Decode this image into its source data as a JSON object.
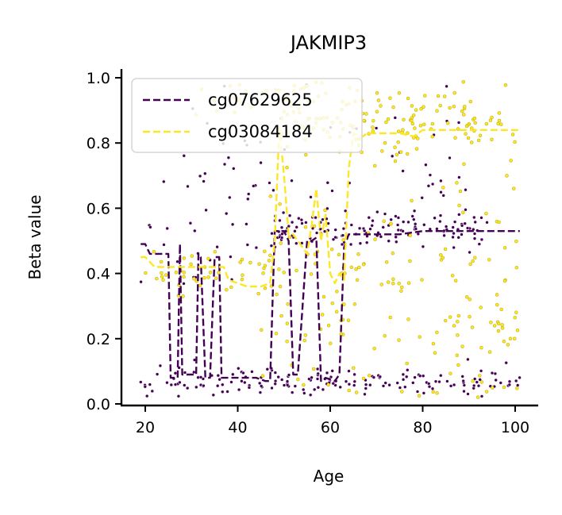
{
  "chart_data": {
    "type": "scatter",
    "title": "JAKMIP3",
    "xlabel": "Age",
    "ylabel": "Beta value",
    "xlim": [
      15,
      105
    ],
    "ylim": [
      -0.01,
      1.03
    ],
    "x_ticks": [
      "20",
      "40",
      "60",
      "80",
      "100"
    ],
    "x_tick_values": [
      20,
      40,
      60,
      80,
      100
    ],
    "y_ticks": [
      "0.0",
      "0.2",
      "0.4",
      "0.6",
      "0.8",
      "1.0"
    ],
    "y_tick_values": [
      0.0,
      0.2,
      0.4,
      0.6,
      0.8,
      1.0
    ],
    "grid": false,
    "legend_position": "top-left",
    "series": [
      {
        "name": "cg07629625",
        "color": "#440154",
        "line_style": "dashed",
        "clusters": [
          {
            "x_range": [
              19,
              101
            ],
            "y_center": 0.07,
            "spread": 0.025,
            "count": 170
          },
          {
            "x_range": [
              47,
              95
            ],
            "y_center": 0.53,
            "spread": 0.03,
            "count": 130
          },
          {
            "x_range": [
              19,
              45
            ],
            "y_center": 0.45,
            "spread": 0.06,
            "count": 18
          },
          {
            "x_range": [
              20,
              90
            ],
            "y_center": 0.7,
            "spread": 0.12,
            "count": 70
          }
        ],
        "trend_x": [
          19,
          20,
          21,
          25,
          25.5,
          26,
          27,
          27.5,
          28,
          29,
          31,
          31.5,
          32,
          33,
          34,
          35,
          36,
          36.5,
          37,
          38,
          44,
          46,
          47,
          48,
          50,
          51,
          52,
          53,
          55,
          56,
          57,
          58,
          59,
          61,
          62,
          63,
          64,
          70,
          75,
          80,
          90,
          101
        ],
        "trend_y": [
          0.49,
          0.49,
          0.46,
          0.46,
          0.08,
          0.08,
          0.08,
          0.49,
          0.09,
          0.09,
          0.09,
          0.46,
          0.45,
          0.08,
          0.08,
          0.45,
          0.45,
          0.08,
          0.08,
          0.08,
          0.08,
          0.07,
          0.07,
          0.53,
          0.53,
          0.5,
          0.09,
          0.09,
          0.5,
          0.5,
          0.51,
          0.07,
          0.08,
          0.07,
          0.09,
          0.48,
          0.52,
          0.52,
          0.52,
          0.53,
          0.53,
          0.53
        ]
      },
      {
        "name": "cg03084184",
        "color": "#fde725",
        "line_style": "dashed",
        "clusters": [
          {
            "x_range": [
              48,
              100
            ],
            "y_center": 0.86,
            "spread": 0.06,
            "count": 150
          },
          {
            "x_range": [
              45,
              101
            ],
            "y_center": 0.3,
            "spread": 0.15,
            "count": 170
          },
          {
            "x_range": [
              19,
              47
            ],
            "y_center": 0.4,
            "spread": 0.04,
            "count": 40
          },
          {
            "x_range": [
              30,
              60
            ],
            "y_center": 0.95,
            "spread": 0.03,
            "count": 25
          }
        ],
        "trend_x": [
          19,
          20,
          22,
          25,
          30,
          33,
          35,
          37,
          38,
          42,
          45,
          47,
          48,
          49,
          50,
          51,
          52,
          53,
          54,
          55,
          56,
          57,
          58,
          59,
          60,
          61,
          62,
          63,
          64,
          65,
          67,
          68,
          70,
          75,
          78,
          80,
          90,
          101
        ],
        "trend_y": [
          0.45,
          0.45,
          0.42,
          0.42,
          0.42,
          0.42,
          0.42,
          0.42,
          0.38,
          0.36,
          0.36,
          0.37,
          0.5,
          0.85,
          0.7,
          0.52,
          0.52,
          0.5,
          0.48,
          0.46,
          0.55,
          0.66,
          0.5,
          0.58,
          0.4,
          0.37,
          0.4,
          0.38,
          0.72,
          0.83,
          0.82,
          0.83,
          0.83,
          0.83,
          0.82,
          0.84,
          0.84,
          0.84
        ]
      }
    ]
  }
}
